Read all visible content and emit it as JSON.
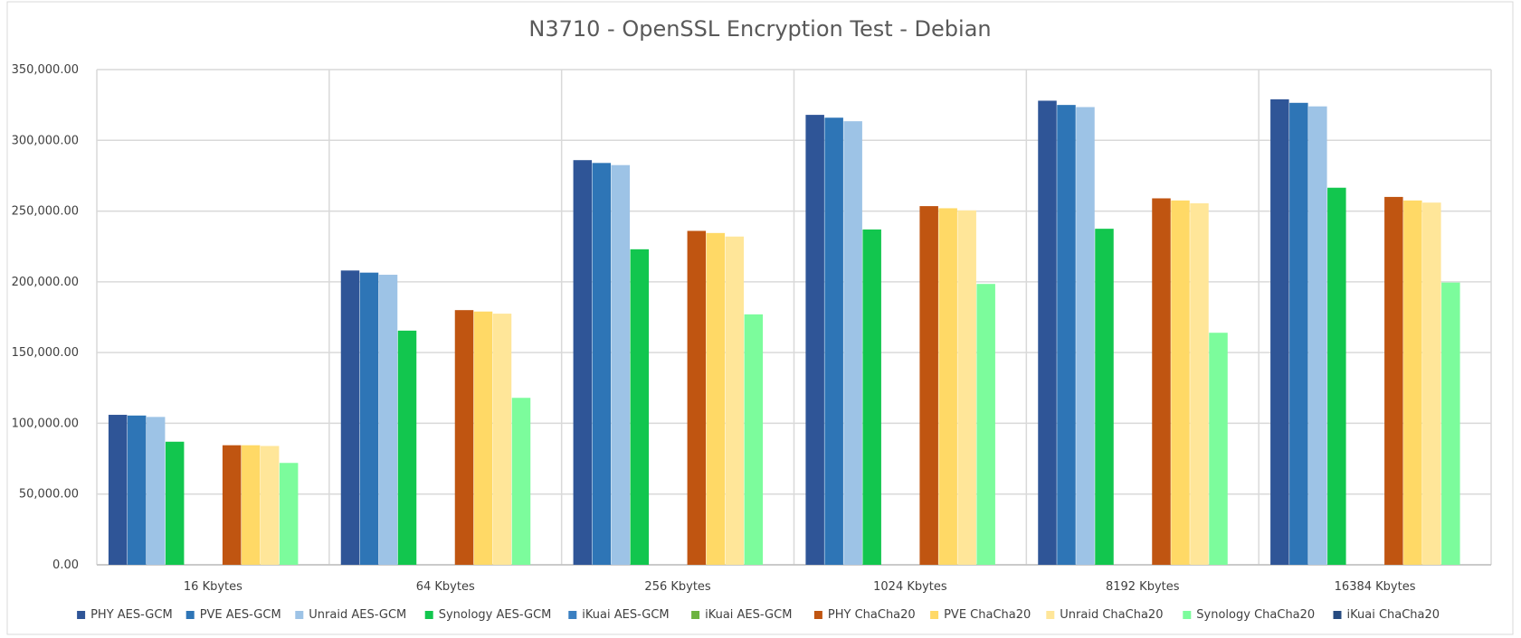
{
  "chart_data": {
    "type": "bar",
    "title": "N3710 - OpenSSL Encryption Test  -  Debian",
    "xlabel": "",
    "ylabel": "",
    "ylim": [
      0,
      350000
    ],
    "yticks": [
      0,
      50000,
      100000,
      150000,
      200000,
      250000,
      300000,
      350000
    ],
    "ytick_labels": [
      "0.00",
      "50,000.00",
      "100,000.00",
      "150,000.00",
      "200,000.00",
      "250,000.00",
      "300,000.00",
      "350,000.00"
    ],
    "grid": true,
    "legend_position": "bottom",
    "categories": [
      "16 Kbytes",
      "64 Kbytes",
      "256 Kbytes",
      "1024 Kbytes",
      "8192 Kbytes",
      "16384 Kbytes"
    ],
    "series": [
      {
        "name": "PHY AES-GCM",
        "color": "#2F5597",
        "values": [
          106000,
          208000,
          286000,
          318000,
          328000,
          329000
        ]
      },
      {
        "name": "PVE AES-GCM",
        "color": "#2E75B6",
        "values": [
          105500,
          206500,
          284000,
          316000,
          325000,
          326500
        ]
      },
      {
        "name": "Unraid AES-GCM",
        "color": "#9DC3E6",
        "values": [
          104500,
          205000,
          282500,
          313500,
          323500,
          324000
        ]
      },
      {
        "name": "Synology AES-GCM",
        "color": "#12C64E",
        "values": [
          87000,
          165500,
          223000,
          237000,
          237500,
          266500
        ]
      },
      {
        "name": "iKuai AES-GCM",
        "color": "#3A7FC1",
        "values": [
          null,
          null,
          null,
          null,
          null,
          null
        ]
      },
      {
        "name": "iKuai AES-GCM",
        "color": "#6CB33F",
        "values": [
          null,
          null,
          null,
          null,
          null,
          null
        ]
      },
      {
        "name": "PHY ChaCha20",
        "color": "#C05511",
        "values": [
          84500,
          180000,
          236000,
          253500,
          259000,
          260000
        ]
      },
      {
        "name": "PVE ChaCha20",
        "color": "#FFD966",
        "values": [
          84500,
          179000,
          234500,
          252000,
          257500,
          257500
        ]
      },
      {
        "name": "Unraid ChaCha20",
        "color": "#FFE699",
        "values": [
          84000,
          177500,
          232000,
          250500,
          255500,
          256000
        ]
      },
      {
        "name": "Synology ChaCha20",
        "color": "#7CFC9C",
        "values": [
          72000,
          118000,
          177000,
          198500,
          164000,
          199500
        ]
      },
      {
        "name": "iKuai ChaCha20",
        "color": "#264B80",
        "values": [
          null,
          null,
          null,
          null,
          null,
          null
        ]
      }
    ]
  }
}
